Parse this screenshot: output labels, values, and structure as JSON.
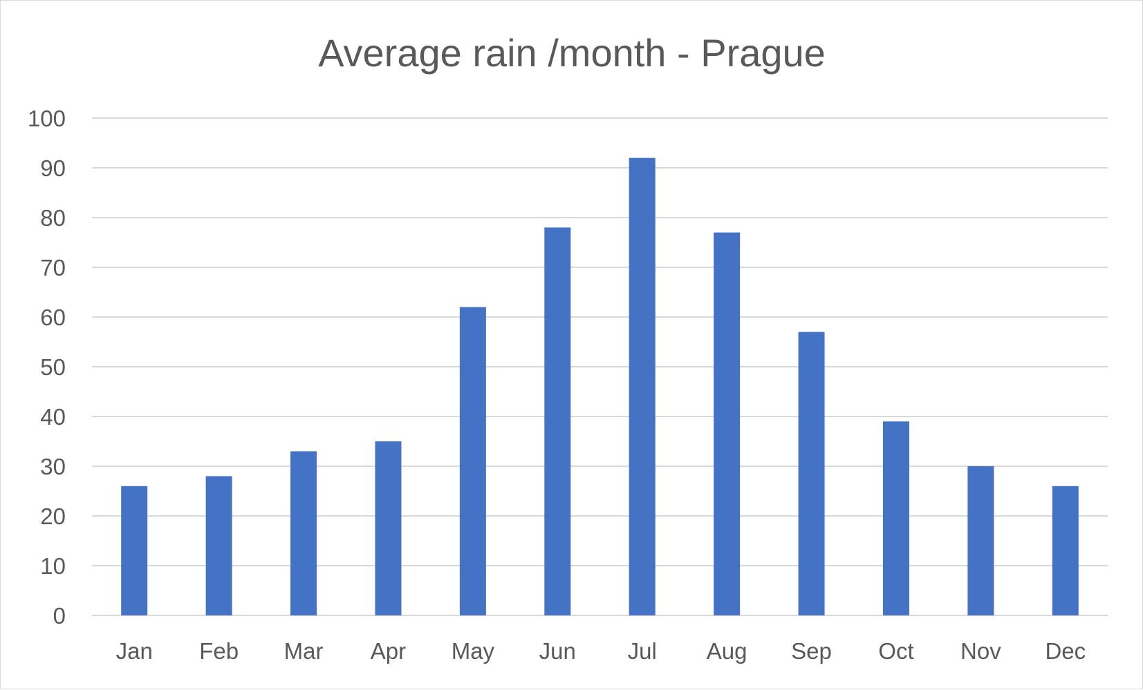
{
  "chart_data": {
    "type": "bar",
    "title": "Average rain /month - Prague",
    "categories": [
      "Jan",
      "Feb",
      "Mar",
      "Apr",
      "May",
      "Jun",
      "Jul",
      "Aug",
      "Sep",
      "Oct",
      "Nov",
      "Dec"
    ],
    "values": [
      26,
      28,
      33,
      35,
      62,
      78,
      92,
      77,
      57,
      39,
      30,
      26
    ],
    "ylim": [
      0,
      100
    ],
    "yticks": [
      "0",
      "10",
      "20",
      "30",
      "40",
      "50",
      "60",
      "70",
      "80",
      "90",
      "100"
    ],
    "grid": true,
    "legend": "none",
    "bar_color": "#4472c4",
    "text_color": "#595959",
    "grid_color": "#d9d9d9"
  }
}
